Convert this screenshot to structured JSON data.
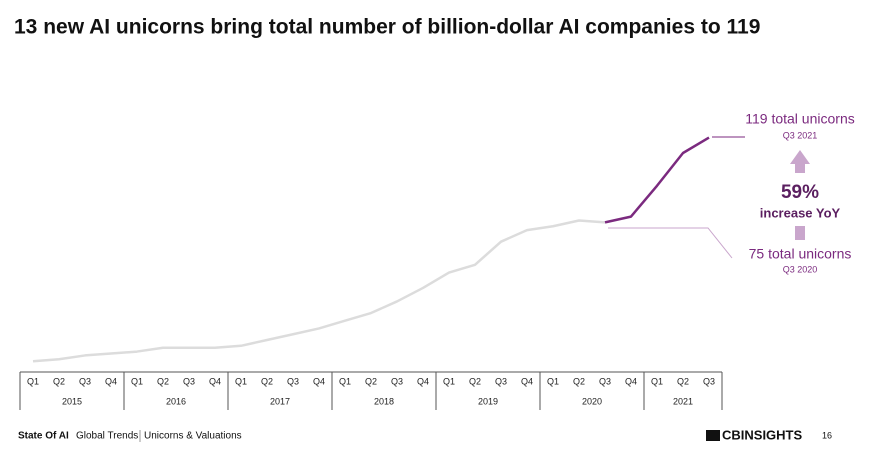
{
  "chart_data": {
    "type": "line",
    "title": "13 new AI unicorns bring total number of billion-dollar AI companies to 119",
    "categories": [
      "Q1",
      "Q2",
      "Q3",
      "Q4",
      "Q1",
      "Q2",
      "Q3",
      "Q4",
      "Q1",
      "Q2",
      "Q3",
      "Q4",
      "Q1",
      "Q2",
      "Q3",
      "Q4",
      "Q1",
      "Q2",
      "Q3",
      "Q4",
      "Q1",
      "Q2",
      "Q3",
      "Q4",
      "Q1",
      "Q2",
      "Q3"
    ],
    "years": [
      "2015",
      "2016",
      "2017",
      "2018",
      "2019",
      "2020",
      "2021"
    ],
    "series": [
      {
        "color": "#dcdcdc",
        "values": [
          3,
          4,
          6,
          7,
          8,
          10,
          10,
          10,
          11,
          14,
          17,
          20,
          24,
          28,
          34,
          41,
          49,
          53,
          65,
          71,
          73,
          76,
          75,
          null,
          null,
          null,
          null
        ]
      },
      {
        "color": "#7b2a7f",
        "values": [
          null,
          null,
          null,
          null,
          null,
          null,
          null,
          null,
          null,
          null,
          null,
          null,
          null,
          null,
          null,
          null,
          null,
          null,
          null,
          null,
          null,
          null,
          75,
          78,
          94,
          111,
          119
        ]
      }
    ],
    "ylim": [
      0,
      125
    ],
    "annotations": {
      "end_label": "119 total unicorns",
      "end_period": "Q3 2021",
      "change": "59%",
      "change_label": "increase YoY",
      "start_label": "75 total unicorns",
      "start_period": "Q3 2020"
    },
    "footer": {
      "report": "State Of AI",
      "section": "Global Trends",
      "topic": "Unicorns & Valuations",
      "brand": "CBINSIGHTS",
      "page": "16"
    }
  }
}
